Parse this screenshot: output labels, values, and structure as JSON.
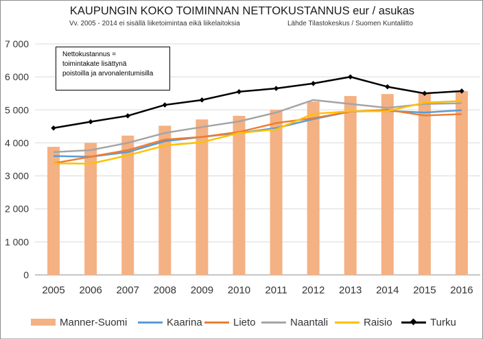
{
  "header": {
    "title": "KAUPUNGIN KOKO TOIMINNAN NETTOKUSTANNUS eur / asukas",
    "subtitle": "Vv.  2005 - 2014 ei sisällä liiketoimintaa eikä liikelaitoksia",
    "source": "Lähde Tilastokeskus / Suomen Kuntaliitto"
  },
  "annotation": {
    "line1": "Nettokustannus  =",
    "line2": "toimintakate  lisättynä",
    "line3": "poistoilla  ja arvonalentumisilla"
  },
  "colors": {
    "Manner-Suomi": "#f4b183",
    "Kaarina": "#5b9bd5",
    "Lieto": "#ed7d31",
    "Naantali": "#a5a5a5",
    "Raisio": "#ffc000",
    "Turku": "#000000"
  },
  "chart_data": {
    "type": "bar",
    "categories": [
      "2005",
      "2006",
      "2007",
      "2008",
      "2009",
      "2010",
      "2011",
      "2012",
      "2013",
      "2014",
      "2015",
      "2016"
    ],
    "ylim": [
      0,
      7000
    ],
    "yticks": [
      0,
      1000,
      2000,
      3000,
      4000,
      5000,
      6000,
      7000
    ],
    "ytick_labels": [
      "0",
      "1 000",
      "2 000",
      "3 000",
      "4 000",
      "5 000",
      "6 000",
      "7 000"
    ],
    "grid": true,
    "legend_position": "bottom",
    "series": [
      {
        "name": "Manner-Suomi",
        "type": "bar",
        "values": [
          3880,
          4000,
          4220,
          4520,
          4710,
          4820,
          5000,
          5250,
          5420,
          5480,
          5510,
          5570
        ]
      },
      {
        "name": "Kaarina",
        "type": "line",
        "values": [
          3600,
          3580,
          3720,
          4050,
          4180,
          4300,
          4450,
          4720,
          4950,
          4970,
          4920,
          4990
        ]
      },
      {
        "name": "Lieto",
        "type": "line",
        "values": [
          3380,
          3580,
          3780,
          4100,
          4180,
          4330,
          4600,
          4750,
          4950,
          5000,
          4830,
          4870
        ]
      },
      {
        "name": "Naantali",
        "type": "line",
        "values": [
          3720,
          3780,
          4000,
          4300,
          4480,
          4650,
          4920,
          5300,
          5180,
          5060,
          5180,
          5200
        ]
      },
      {
        "name": "Raisio",
        "type": "line",
        "values": [
          3380,
          3370,
          3620,
          3920,
          4020,
          4300,
          4410,
          4880,
          4960,
          4960,
          5220,
          5270
        ]
      },
      {
        "name": "Turku",
        "type": "line",
        "markers": true,
        "values": [
          4450,
          4640,
          4820,
          5150,
          5300,
          5550,
          5650,
          5800,
          6000,
          5700,
          5500,
          5570
        ]
      }
    ]
  }
}
